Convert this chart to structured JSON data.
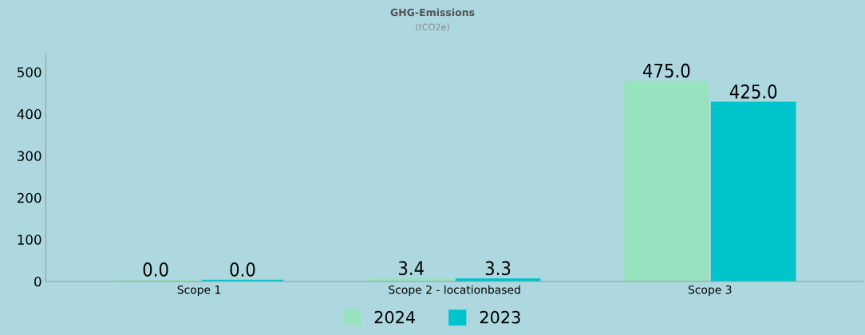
{
  "chart_data": {
    "type": "bar",
    "title": "GHG-Emissions",
    "subtitle": "(tCO2e)",
    "categories": [
      "Scope 1",
      "Scope 2 - locationbased",
      "Scope 3"
    ],
    "series": [
      {
        "name": "2024",
        "color": "#98e2c0",
        "values": [
          0,
          3.4,
          475
        ],
        "value_labels": [
          "0.0",
          "3.4",
          "475.0"
        ]
      },
      {
        "name": "2023",
        "color": "#00c4cc",
        "values": [
          0,
          3.3,
          425
        ],
        "value_labels": [
          "0.0",
          "3.3",
          "425.0"
        ]
      }
    ],
    "ylim": [
      0,
      544
    ],
    "yticks": [
      0,
      100,
      200,
      300,
      400,
      500
    ],
    "grid": false,
    "legend": "bottom"
  }
}
